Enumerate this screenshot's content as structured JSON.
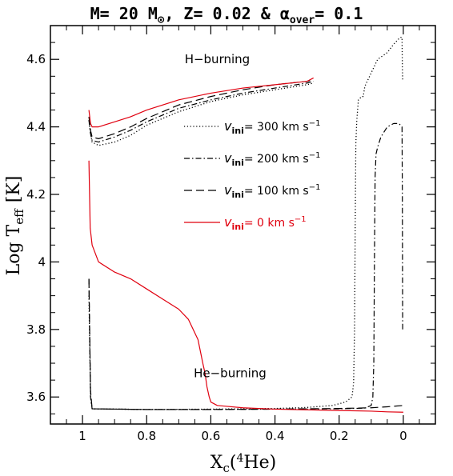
{
  "chart_data": {
    "type": "line",
    "title": {
      "parts": [
        "M= 20 M",
        ", Z= 0.02 & ",
        "over",
        "= 0.1"
      ],
      "sun_symbol": "⊙",
      "alpha": "α"
    },
    "xlabel": {
      "main": "X",
      "sub": "c",
      "paren_open": "(",
      "sup": "4",
      "element": "He",
      "paren_close": ")"
    },
    "ylabel": {
      "main": "Log T",
      "sub": "eff",
      "unit": "[K]"
    },
    "xlim": [
      1.1,
      -0.1
    ],
    "ylim": [
      3.52,
      4.7
    ],
    "x_ticks": [
      {
        "value": 1,
        "label": "1"
      },
      {
        "value": 0.8,
        "label": "0.8"
      },
      {
        "value": 0.6,
        "label": "0.6"
      },
      {
        "value": 0.4,
        "label": "0.4"
      },
      {
        "value": 0.2,
        "label": "0.2"
      },
      {
        "value": 0,
        "label": "0"
      }
    ],
    "y_ticks": [
      {
        "value": 3.6,
        "label": "3.6"
      },
      {
        "value": 3.8,
        "label": "3.8"
      },
      {
        "value": 4.0,
        "label": "4"
      },
      {
        "value": 4.2,
        "label": "4.2"
      },
      {
        "value": 4.4,
        "label": "4.4"
      },
      {
        "value": 4.6,
        "label": "4.6"
      }
    ],
    "annotations": [
      {
        "text": "H−burning",
        "x": 0.58,
        "y": 4.6
      },
      {
        "text": "He−burning",
        "x": 0.54,
        "y": 3.67
      }
    ],
    "legend": {
      "placement": "upper-right",
      "prefix": "v",
      "prefix_sub": "ini",
      "unit_main": "km s",
      "unit_sup": "−1"
    },
    "series": [
      {
        "name": "300",
        "color": "#000000",
        "style": "dotted",
        "h_burning": {
          "x": [
            0.98,
            0.975,
            0.97,
            0.95,
            0.9,
            0.85,
            0.8,
            0.7,
            0.6,
            0.5,
            0.4,
            0.3,
            0.28
          ],
          "y": [
            4.42,
            4.38,
            4.355,
            4.345,
            4.355,
            4.375,
            4.405,
            4.445,
            4.475,
            4.495,
            4.51,
            4.525,
            4.53
          ]
        },
        "he_burning": {
          "x": [
            0.98,
            0.975,
            0.97,
            0.8,
            0.6,
            0.4,
            0.3,
            0.22,
            0.18,
            0.16,
            0.155,
            0.152,
            0.15,
            0.148,
            0.145,
            0.14,
            0.13,
            0.125,
            0.12,
            0.1,
            0.08,
            0.05,
            0.03,
            0.015,
            0.008,
            0.004,
            0.003,
            0.002,
            0.002
          ],
          "y": [
            3.9,
            3.6,
            3.565,
            3.563,
            3.564,
            3.566,
            3.569,
            3.575,
            3.585,
            3.6,
            3.64,
            3.8,
            4.1,
            4.35,
            4.42,
            4.48,
            4.49,
            4.49,
            4.52,
            4.56,
            4.6,
            4.62,
            4.645,
            4.66,
            4.665,
            4.665,
            4.58,
            4.54,
            4.54
          ]
        }
      },
      {
        "name": "200",
        "color": "#000000",
        "style": "dashdot",
        "h_burning": {
          "x": [
            0.98,
            0.975,
            0.97,
            0.95,
            0.9,
            0.85,
            0.8,
            0.7,
            0.6,
            0.5,
            0.4,
            0.3,
            0.28
          ],
          "y": [
            4.42,
            4.38,
            4.36,
            4.355,
            4.37,
            4.39,
            4.415,
            4.455,
            4.48,
            4.5,
            4.515,
            4.53,
            4.535
          ]
        },
        "he_burning": {
          "x": [
            0.98,
            0.975,
            0.97,
            0.8,
            0.6,
            0.4,
            0.2,
            0.12,
            0.1,
            0.095,
            0.092,
            0.09,
            0.088,
            0.085,
            0.08,
            0.07,
            0.05,
            0.03,
            0.015,
            0.008,
            0.004,
            0.003,
            0.002,
            0.002
          ],
          "y": [
            3.95,
            3.6,
            3.565,
            3.563,
            3.563,
            3.564,
            3.565,
            3.567,
            3.575,
            3.6,
            3.7,
            4.0,
            4.25,
            4.32,
            4.34,
            4.37,
            4.4,
            4.41,
            4.41,
            4.405,
            4.4,
            4.2,
            3.8,
            3.8
          ]
        }
      },
      {
        "name": "100",
        "color": "#000000",
        "style": "dashed",
        "h_burning": {
          "x": [
            0.98,
            0.975,
            0.97,
            0.95,
            0.9,
            0.85,
            0.8,
            0.7,
            0.6,
            0.5,
            0.4,
            0.3,
            0.28
          ],
          "y": [
            4.43,
            4.39,
            4.37,
            4.365,
            4.38,
            4.4,
            4.425,
            4.465,
            4.49,
            4.51,
            4.525,
            4.535,
            4.54
          ]
        },
        "he_burning": {
          "x": [
            0.98,
            0.975,
            0.97,
            0.8,
            0.6,
            0.4,
            0.2,
            0.1,
            0.05,
            0.0
          ],
          "y": [
            3.95,
            3.62,
            3.565,
            3.563,
            3.563,
            3.564,
            3.566,
            3.568,
            3.571,
            3.575
          ]
        }
      },
      {
        "name": "0",
        "color": "#e0000f",
        "style": "solid",
        "h_burning": {
          "x": [
            0.98,
            0.975,
            0.97,
            0.95,
            0.9,
            0.85,
            0.8,
            0.7,
            0.6,
            0.5,
            0.4,
            0.3,
            0.28
          ],
          "y": [
            4.45,
            4.41,
            4.4,
            4.4,
            4.415,
            4.43,
            4.45,
            4.48,
            4.5,
            4.515,
            4.525,
            4.535,
            4.545
          ]
        },
        "he_burning": {
          "x": [
            0.98,
            0.978,
            0.976,
            0.97,
            0.95,
            0.9,
            0.85,
            0.8,
            0.75,
            0.7,
            0.67,
            0.64,
            0.625,
            0.618,
            0.612,
            0.605,
            0.6,
            0.58,
            0.5,
            0.4,
            0.3,
            0.2,
            0.1,
            0.05,
            0.0
          ],
          "y": [
            4.3,
            4.2,
            4.1,
            4.05,
            4.0,
            3.97,
            3.95,
            3.92,
            3.89,
            3.86,
            3.83,
            3.77,
            3.7,
            3.67,
            3.63,
            3.6,
            3.585,
            3.575,
            3.568,
            3.564,
            3.562,
            3.56,
            3.558,
            3.556,
            3.555
          ]
        }
      }
    ]
  }
}
